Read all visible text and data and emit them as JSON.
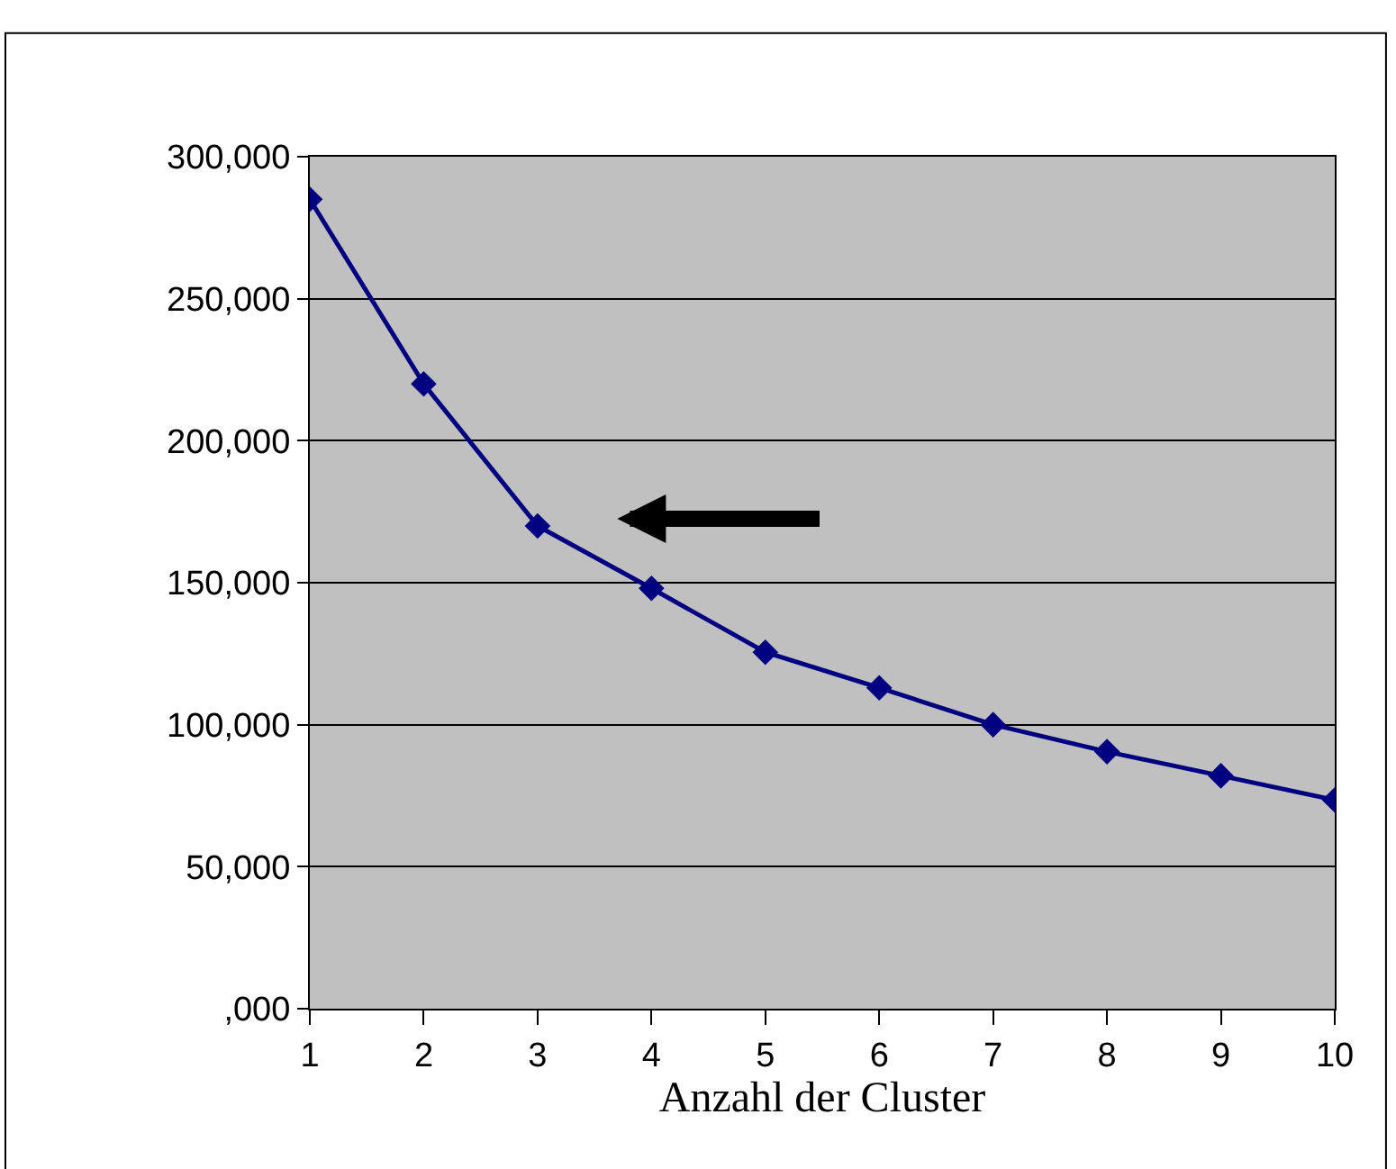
{
  "chart_data": {
    "type": "line",
    "xlabel": "Anzahl der Cluster",
    "x": [
      1,
      2,
      3,
      4,
      5,
      6,
      7,
      8,
      9,
      10
    ],
    "series": [
      {
        "color": "#000080",
        "values": [
          285000,
          220000,
          170000,
          148000,
          125500,
          113000,
          100000,
          90500,
          82000,
          73500
        ]
      }
    ],
    "xlim": [
      1,
      10
    ],
    "xticks": [
      1,
      2,
      3,
      4,
      5,
      6,
      7,
      8,
      9,
      10
    ],
    "ylim": [
      0,
      300000
    ],
    "yticks": [
      {
        "value": 0,
        "label": ",000"
      },
      {
        "value": 50000,
        "label": "50,000"
      },
      {
        "value": 100000,
        "label": "100,000"
      },
      {
        "value": 150000,
        "label": "150,000"
      },
      {
        "value": 200000,
        "label": "200,000"
      },
      {
        "value": 250000,
        "label": "250,000"
      },
      {
        "value": 300000,
        "label": "300,000"
      }
    ],
    "grid": "y",
    "marker": "diamond",
    "line_style": "solid",
    "legend": false
  }
}
